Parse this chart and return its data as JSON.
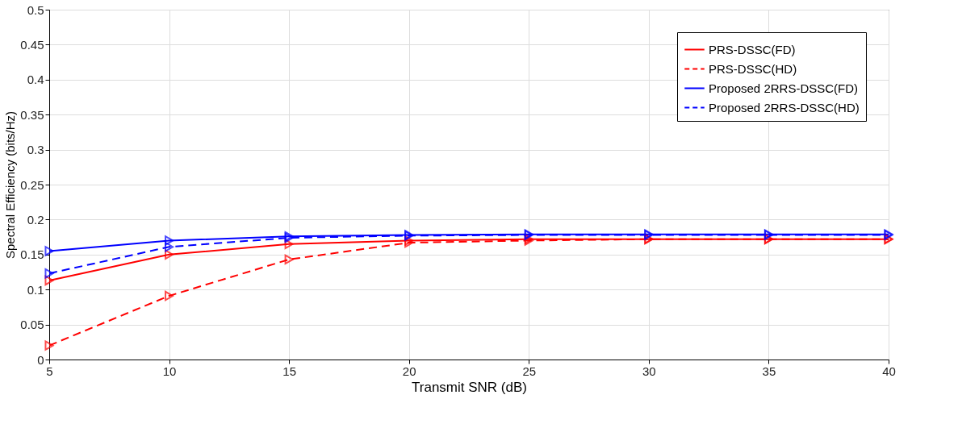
{
  "chart_data": {
    "type": "line",
    "xlabel": "Transmit SNR (dB)",
    "ylabel": "Spectral Efficiency (bits/Hz)",
    "x": [
      5,
      10,
      15,
      20,
      25,
      30,
      35,
      40
    ],
    "series": [
      {
        "name": "PRS-DSSC(FD)",
        "color": "#ff0000",
        "line_style": "solid",
        "values": [
          0.113,
          0.15,
          0.165,
          0.17,
          0.172,
          0.172,
          0.172,
          0.172
        ]
      },
      {
        "name": "PRS-DSSC(HD)",
        "color": "#ff0000",
        "line_style": "dashed",
        "values": [
          0.02,
          0.091,
          0.143,
          0.167,
          0.17,
          0.172,
          0.172,
          0.172
        ]
      },
      {
        "name": "Proposed 2RRS-DSSC(FD)",
        "color": "#0000ff",
        "line_style": "solid",
        "values": [
          0.155,
          0.17,
          0.176,
          0.178,
          0.179,
          0.179,
          0.179,
          0.179
        ]
      },
      {
        "name": "Proposed 2RRS-DSSC(HD)",
        "color": "#0000ff",
        "line_style": "dashed",
        "values": [
          0.123,
          0.161,
          0.174,
          0.177,
          0.178,
          0.178,
          0.178,
          0.178
        ]
      }
    ],
    "xlim": [
      5,
      40
    ],
    "xticks": [
      5,
      10,
      15,
      20,
      25,
      30,
      35,
      40
    ],
    "ylim": [
      0,
      0.5
    ],
    "yticks": [
      0,
      0.05,
      0.1,
      0.15,
      0.2,
      0.25,
      0.3,
      0.35,
      0.4,
      0.45,
      0.5
    ],
    "grid": true,
    "legend": "top right",
    "marker": "triangle"
  }
}
